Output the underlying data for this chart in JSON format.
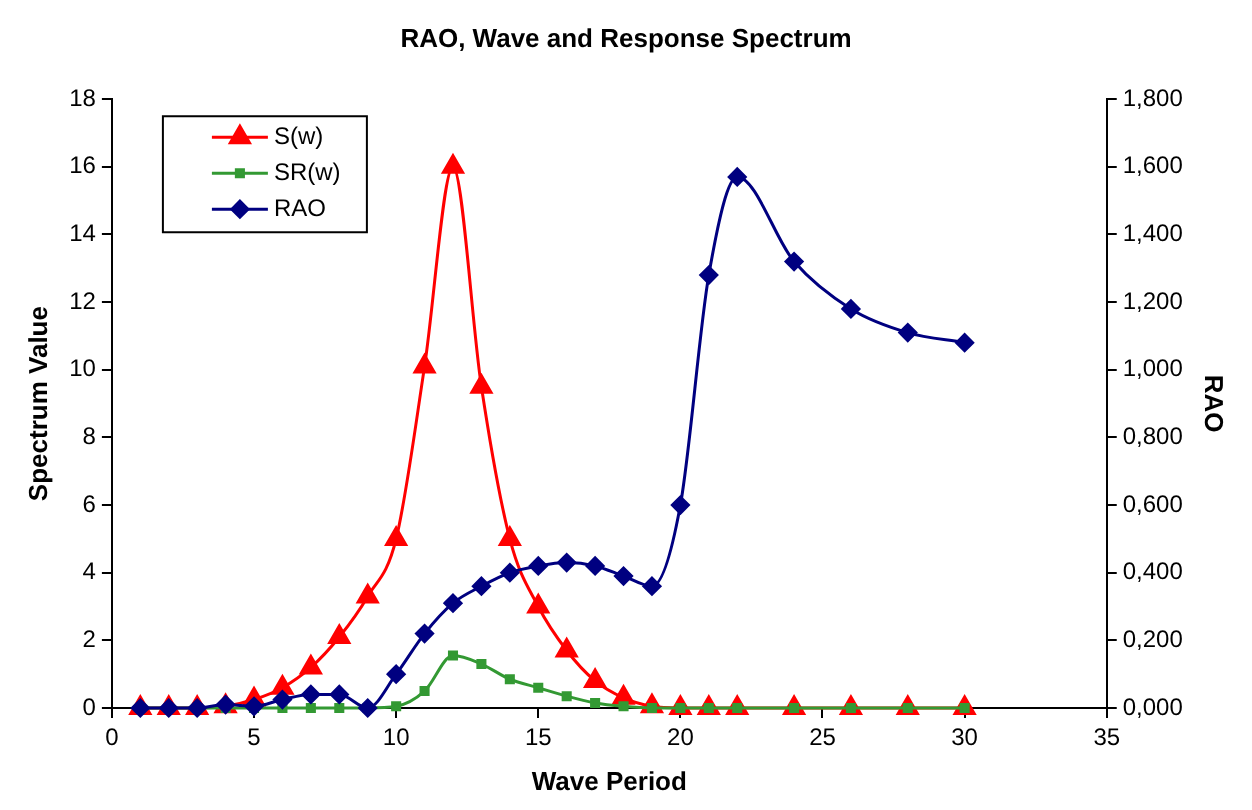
{
  "chart_data": {
    "type": "line",
    "title": "RAO, Wave and Response Spectrum",
    "xlabel": "Wave Period",
    "ylabel": "Spectrum Value",
    "y2label": "RAO",
    "x": [
      1,
      2,
      3,
      4,
      5,
      6,
      7,
      8,
      9,
      10,
      11,
      12,
      13,
      14,
      15,
      16,
      17,
      18,
      19,
      20,
      21,
      22,
      24,
      26,
      28,
      30
    ],
    "series": [
      {
        "name": "S(w)",
        "color": "#ff0000",
        "marker": "triangle",
        "values": [
          0,
          0,
          0,
          0.05,
          0.25,
          0.6,
          1.2,
          2.1,
          3.3,
          5.0,
          10.1,
          16.0,
          9.5,
          5.0,
          3.0,
          1.7,
          0.8,
          0.3,
          0.05,
          0,
          0,
          0,
          0,
          0,
          0,
          0
        ]
      },
      {
        "name": "SR(w)",
        "color": "#339933",
        "marker": "square",
        "values": [
          0,
          0,
          0,
          0,
          0,
          0,
          0,
          0,
          0,
          0.05,
          0.5,
          1.55,
          1.3,
          0.85,
          0.6,
          0.35,
          0.15,
          0.05,
          0,
          0,
          0,
          0,
          0,
          0,
          0,
          0
        ]
      },
      {
        "name": "RAO",
        "color": "#000080",
        "marker": "diamond",
        "axis": "y2",
        "values": [
          0,
          0,
          0,
          0.01,
          0.005,
          0.025,
          0.04,
          0.04,
          0,
          0.1,
          0.22,
          0.31,
          0.36,
          0.4,
          0.42,
          0.43,
          0.42,
          0.39,
          0.36,
          0.6,
          1.28,
          1.57,
          1.32,
          1.18,
          1.11,
          1.08
        ]
      }
    ],
    "xlim": [
      0,
      35
    ],
    "xticks": [
      0,
      5,
      10,
      15,
      20,
      25,
      30,
      35
    ],
    "ylim": [
      0,
      18
    ],
    "yticks": [
      0,
      2,
      4,
      6,
      8,
      10,
      12,
      14,
      16,
      18
    ],
    "y2lim": [
      0,
      1.8
    ],
    "y2ticks": [
      {
        "value": 0,
        "label": "0,000"
      },
      {
        "value": 0.2,
        "label": "0,200"
      },
      {
        "value": 0.4,
        "label": "0,400"
      },
      {
        "value": 0.6,
        "label": "0,600"
      },
      {
        "value": 0.8,
        "label": "0,800"
      },
      {
        "value": 1.0,
        "label": "1,000"
      },
      {
        "value": 1.2,
        "label": "1,200"
      },
      {
        "value": 1.4,
        "label": "1,400"
      },
      {
        "value": 1.6,
        "label": "1,600"
      },
      {
        "value": 1.8,
        "label": "1,800"
      }
    ],
    "legend": "top left",
    "grid": false
  }
}
